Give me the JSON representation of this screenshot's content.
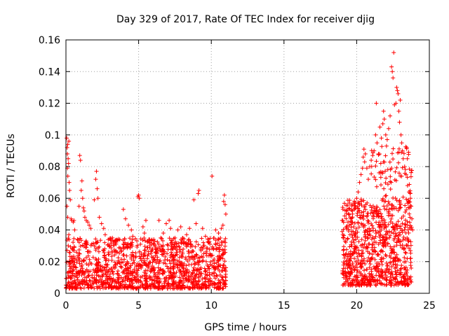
{
  "chart_data": {
    "type": "scatter",
    "title": "Day 329 of 2017, Rate Of TEC Index for receiver djig",
    "xlabel": "GPS time / hours",
    "ylabel": "ROTI / TECUs",
    "xlim": [
      0,
      25
    ],
    "ylim": [
      0,
      0.16
    ],
    "x_ticks": [
      0,
      5,
      10,
      15,
      20,
      25
    ],
    "x_tick_labels": [
      "0",
      "5",
      "10",
      "15",
      "20",
      "25"
    ],
    "y_ticks": [
      0,
      0.02,
      0.04,
      0.06,
      0.08,
      0.1,
      0.12,
      0.14,
      0.16
    ],
    "y_tick_labels": [
      "0",
      "0.02",
      "0.04",
      "0.06",
      "0.08",
      "0.1",
      "0.12",
      "0.14",
      "0.16"
    ],
    "grid": true,
    "marker": "+",
    "color": "#ff0000",
    "series": [
      {
        "name": "ROTI",
        "points": [
          [
            0.05,
            0.098
          ],
          [
            0.08,
            0.092
          ],
          [
            0.1,
            0.088
          ],
          [
            0.12,
            0.094
          ],
          [
            0.15,
            0.085
          ],
          [
            0.18,
            0.082
          ],
          [
            0.2,
            0.096
          ],
          [
            0.1,
            0.079
          ],
          [
            0.13,
            0.074
          ],
          [
            0.22,
            0.07
          ],
          [
            0.25,
            0.065
          ],
          [
            0.3,
            0.059
          ],
          [
            0.07,
            0.055
          ],
          [
            0.35,
            0.047
          ],
          [
            0.4,
            0.046
          ],
          [
            0.12,
            0.048
          ],
          [
            0.5,
            0.045
          ],
          [
            0.55,
            0.046
          ],
          [
            0.6,
            0.04
          ],
          [
            0.2,
            0.037
          ],
          [
            0.95,
            0.087
          ],
          [
            1.0,
            0.084
          ],
          [
            1.1,
            0.071
          ],
          [
            1.05,
            0.065
          ],
          [
            1.15,
            0.06
          ],
          [
            1.2,
            0.054
          ],
          [
            1.25,
            0.052
          ],
          [
            0.9,
            0.055
          ],
          [
            1.3,
            0.048
          ],
          [
            1.4,
            0.046
          ],
          [
            1.5,
            0.045
          ],
          [
            1.6,
            0.043
          ],
          [
            1.7,
            0.041
          ],
          [
            1.95,
            0.059
          ],
          [
            2.1,
            0.077
          ],
          [
            2.05,
            0.072
          ],
          [
            2.15,
            0.066
          ],
          [
            2.2,
            0.06
          ],
          [
            2.3,
            0.048
          ],
          [
            2.45,
            0.044
          ],
          [
            2.6,
            0.041
          ],
          [
            2.7,
            0.037
          ],
          [
            3.2,
            0.035
          ],
          [
            3.4,
            0.033
          ],
          [
            3.7,
            0.034
          ],
          [
            3.95,
            0.053
          ],
          [
            4.1,
            0.047
          ],
          [
            4.3,
            0.043
          ],
          [
            4.5,
            0.04
          ],
          [
            4.6,
            0.036
          ],
          [
            4.95,
            0.061
          ],
          [
            5.0,
            0.062
          ],
          [
            5.05,
            0.06
          ],
          [
            5.3,
            0.042
          ],
          [
            5.5,
            0.046
          ],
          [
            5.4,
            0.038
          ],
          [
            5.7,
            0.034
          ],
          [
            6.1,
            0.033
          ],
          [
            6.4,
            0.046
          ],
          [
            6.7,
            0.038
          ],
          [
            6.9,
            0.044
          ],
          [
            7.1,
            0.046
          ],
          [
            7.2,
            0.041
          ],
          [
            7.5,
            0.035
          ],
          [
            7.7,
            0.04
          ],
          [
            7.9,
            0.042
          ],
          [
            8.3,
            0.037
          ],
          [
            8.5,
            0.041
          ],
          [
            8.8,
            0.059
          ],
          [
            8.95,
            0.044
          ],
          [
            9.1,
            0.063
          ],
          [
            9.15,
            0.065
          ],
          [
            9.4,
            0.041
          ],
          [
            9.6,
            0.036
          ],
          [
            9.8,
            0.032
          ],
          [
            10.05,
            0.074
          ],
          [
            10.3,
            0.04
          ],
          [
            10.5,
            0.038
          ],
          [
            10.7,
            0.041
          ],
          [
            10.85,
            0.058
          ],
          [
            10.9,
            0.062
          ],
          [
            10.95,
            0.056
          ],
          [
            11.0,
            0.05
          ],
          [
            10.8,
            0.043
          ],
          [
            19.0,
            0.039
          ],
          [
            19.05,
            0.037
          ],
          [
            19.1,
            0.035
          ],
          [
            19.2,
            0.033
          ],
          [
            19.3,
            0.041
          ],
          [
            19.4,
            0.045
          ],
          [
            19.5,
            0.043
          ],
          [
            19.6,
            0.047
          ],
          [
            19.7,
            0.052
          ],
          [
            19.8,
            0.057
          ],
          [
            19.9,
            0.055
          ],
          [
            20.0,
            0.06
          ],
          [
            20.1,
            0.064
          ],
          [
            20.2,
            0.07
          ],
          [
            20.3,
            0.075
          ],
          [
            20.4,
            0.079
          ],
          [
            20.45,
            0.086
          ],
          [
            20.5,
            0.091
          ],
          [
            20.55,
            0.083
          ],
          [
            20.6,
            0.088
          ],
          [
            20.7,
            0.079
          ],
          [
            20.8,
            0.072
          ],
          [
            20.9,
            0.08
          ],
          [
            21.0,
            0.084
          ],
          [
            21.1,
            0.087
          ],
          [
            21.2,
            0.09
          ],
          [
            21.3,
            0.1
          ],
          [
            21.35,
            0.12
          ],
          [
            21.4,
            0.095
          ],
          [
            21.5,
            0.088
          ],
          [
            21.6,
            0.105
          ],
          [
            21.7,
            0.098
          ],
          [
            21.8,
            0.107
          ],
          [
            21.85,
            0.115
          ],
          [
            21.9,
            0.11
          ],
          [
            22.0,
            0.1
          ],
          [
            22.05,
            0.093
          ],
          [
            22.1,
            0.097
          ],
          [
            22.2,
            0.104
          ],
          [
            22.3,
            0.112
          ],
          [
            22.4,
            0.143
          ],
          [
            22.45,
            0.14
          ],
          [
            22.5,
            0.136
          ],
          [
            22.55,
            0.152
          ],
          [
            22.6,
            0.119
          ],
          [
            22.7,
            0.12
          ],
          [
            22.75,
            0.13
          ],
          [
            22.8,
            0.128
          ],
          [
            22.85,
            0.126
          ],
          [
            22.9,
            0.115
          ],
          [
            22.95,
            0.108
          ],
          [
            23.0,
            0.122
          ],
          [
            23.05,
            0.1
          ],
          [
            23.1,
            0.095
          ],
          [
            23.15,
            0.09
          ],
          [
            23.2,
            0.085
          ],
          [
            23.3,
            0.08
          ],
          [
            23.4,
            0.075
          ],
          [
            23.5,
            0.068
          ],
          [
            23.6,
            0.064
          ],
          [
            23.7,
            0.06
          ],
          [
            23.75,
            0.055
          ],
          [
            23.8,
            0.047
          ],
          [
            23.85,
            0.04
          ]
        ]
      }
    ],
    "dense_clusters": [
      {
        "x_range": [
          0,
          11
        ],
        "y_range": [
          0.003,
          0.035
        ],
        "approx_points": 1400,
        "seed": 11
      },
      {
        "x_range": [
          19,
          23.8
        ],
        "y_range": [
          0.005,
          0.06
        ],
        "approx_points": 900,
        "seed": 29
      }
    ]
  }
}
